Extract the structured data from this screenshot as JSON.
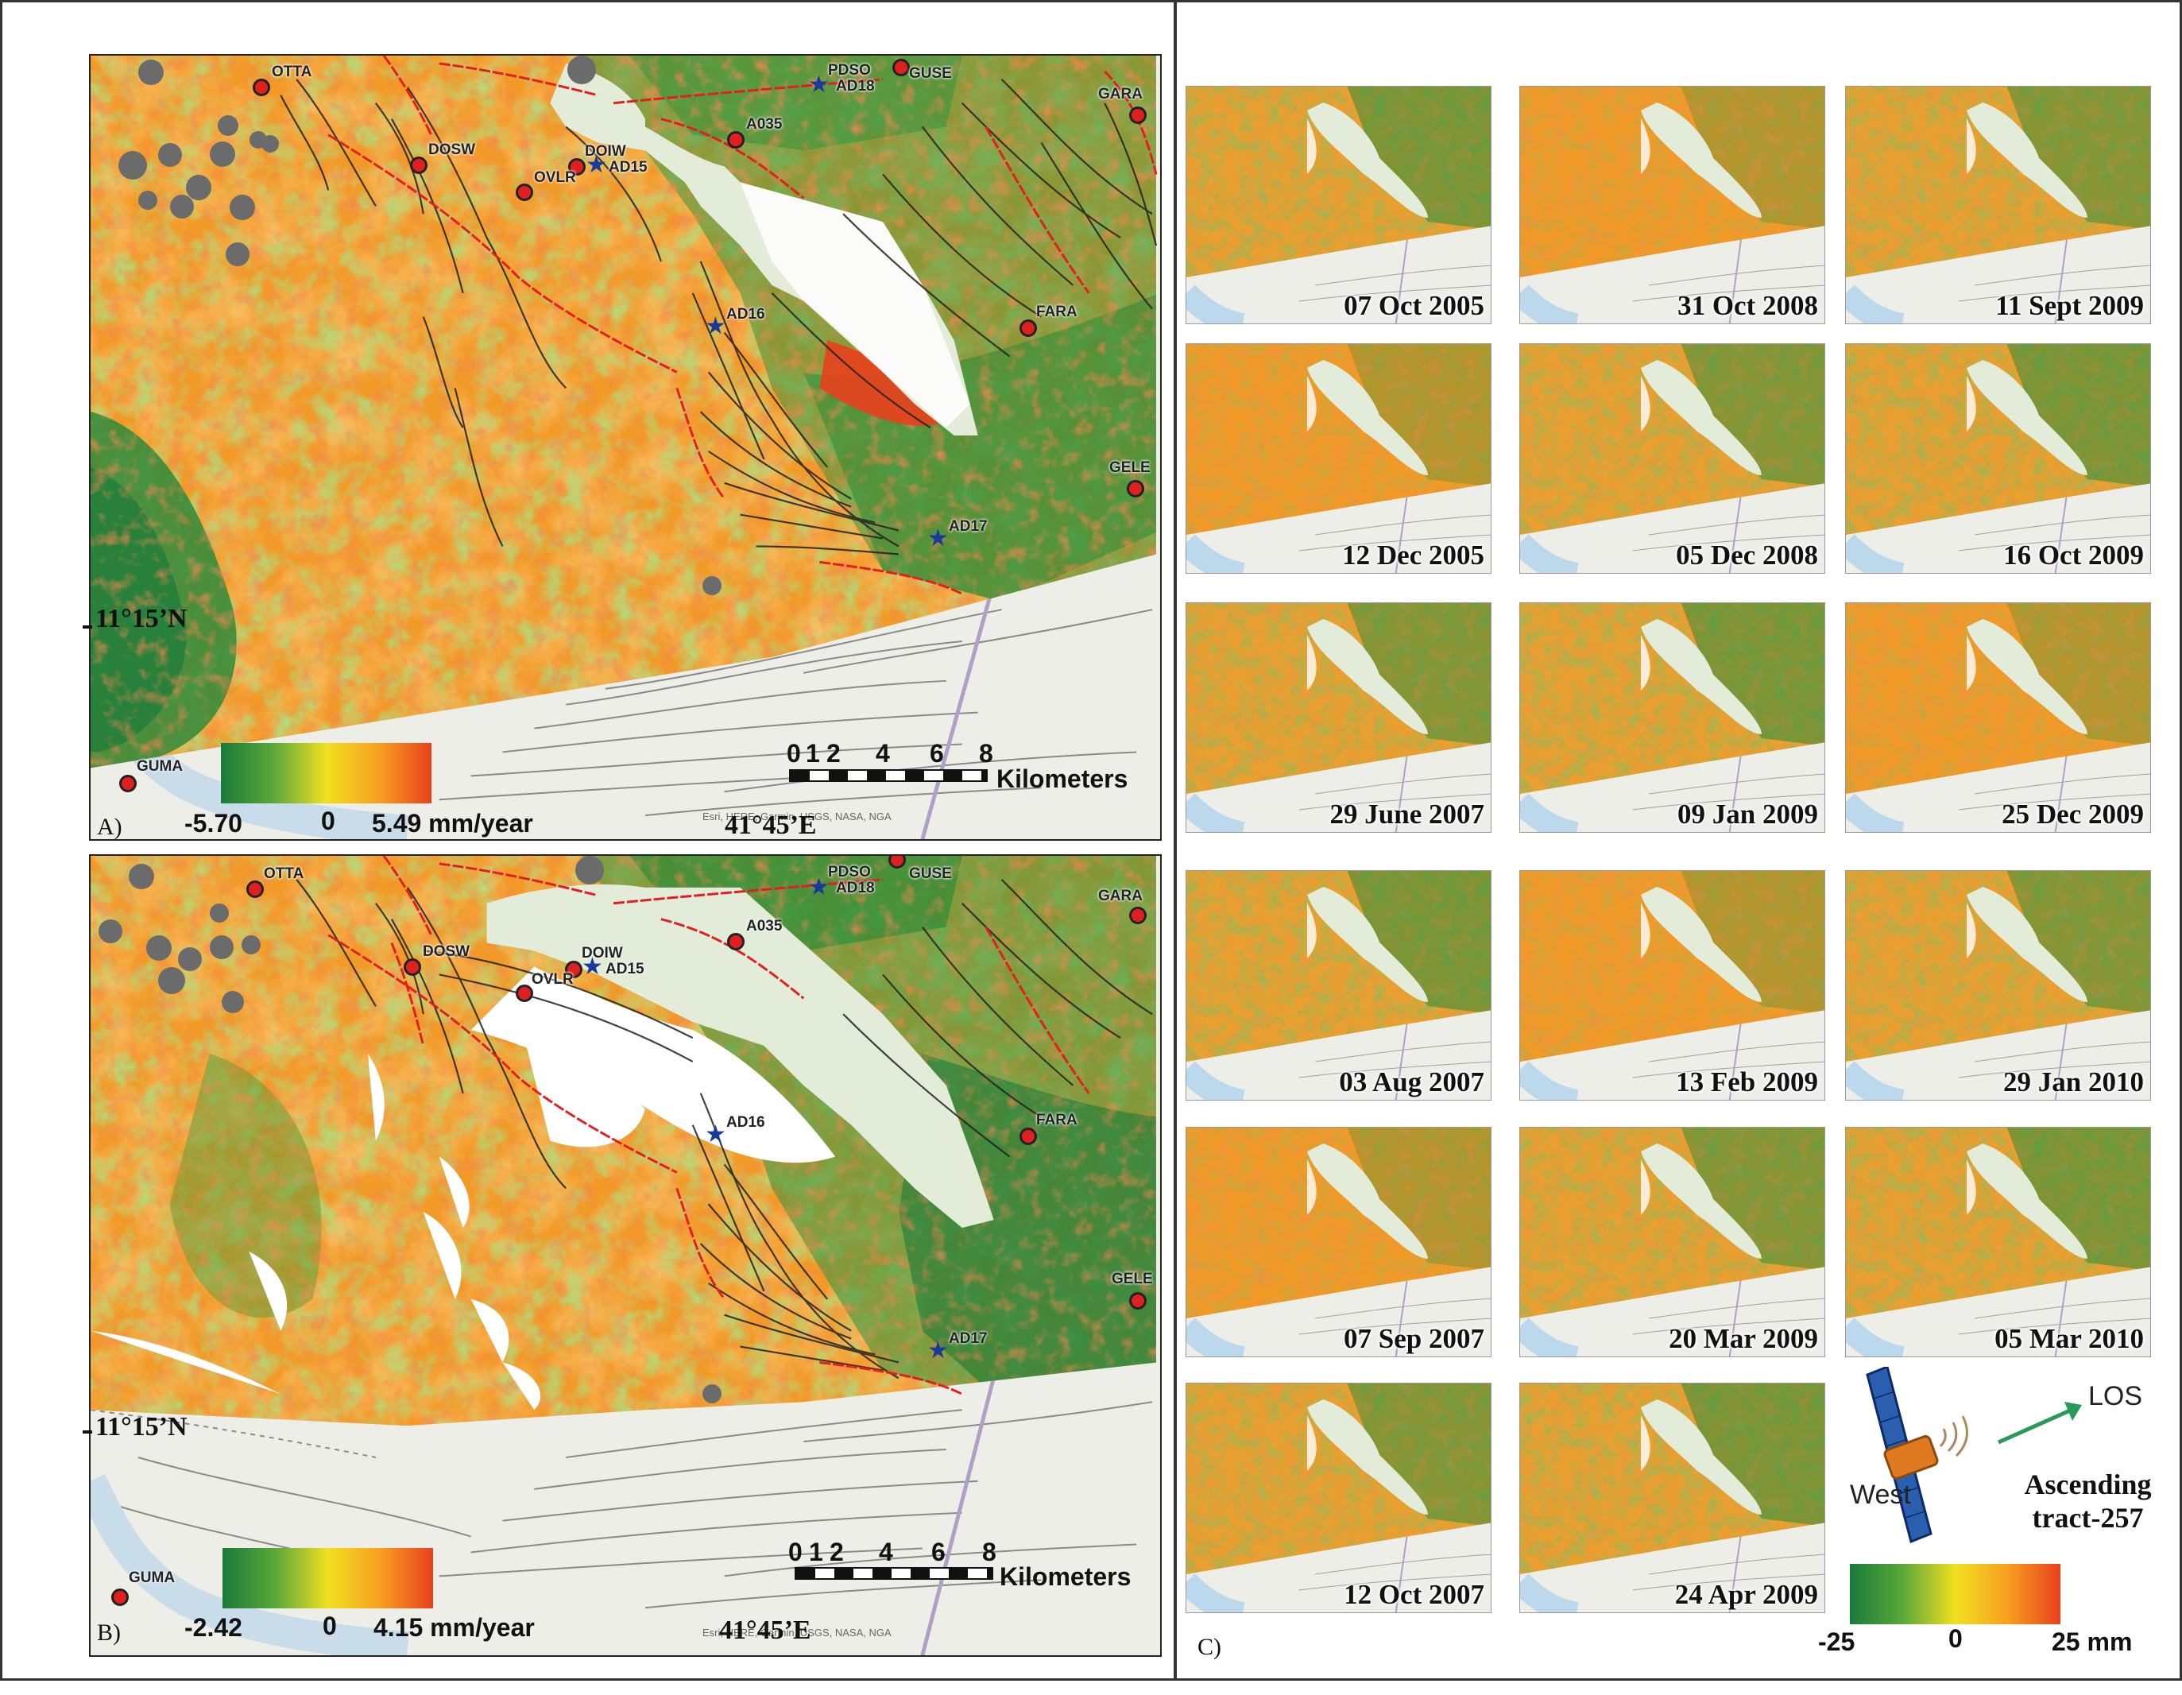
{
  "panel_a": {
    "id_label": "A)",
    "lat_label": "11°15’N",
    "lon_label": "41°45’E",
    "colorbar": {
      "min": "-5.70",
      "zero": "0",
      "max": "5.49 mm/year"
    },
    "scale": {
      "ticks": [
        "0",
        "1",
        "2",
        "4",
        "6",
        "8"
      ],
      "unit": "Kilometers"
    },
    "credit": "Esri, HERE, Garmin, USGS, NASA, NGA",
    "stations": [
      "OTTA",
      "PDSO",
      "GUSE",
      "AD18",
      "GARA",
      "DOSW",
      "DOIW",
      "AD15",
      "OVLR",
      "A035",
      "FARA",
      "AD16",
      "GELE",
      "AD17",
      "GUMA"
    ]
  },
  "panel_b": {
    "id_label": "B)",
    "lat_label": "11°15’N",
    "lon_label": "41°45’E",
    "colorbar": {
      "min": "-2.42",
      "zero": "0",
      "max": "4.15 mm/year"
    },
    "scale": {
      "ticks": [
        "0",
        "1",
        "2",
        "4",
        "6",
        "8"
      ],
      "unit": "Kilometers"
    },
    "credit": "Esri, HERE, Garmin, USGS, NASA, NGA",
    "stations": [
      "OTTA",
      "PDSO",
      "GUSE",
      "AD18",
      "GARA",
      "DOSW",
      "DOIW",
      "AD15",
      "OVLR",
      "A035",
      "FARA",
      "AD16",
      "GELE",
      "AD17",
      "GUMA"
    ]
  },
  "panel_c": {
    "id_label": "C)",
    "dates": [
      [
        "07 Oct 2005",
        "31 Oct 2008",
        "11 Sept 2009"
      ],
      [
        "12 Dec 2005",
        "05 Dec 2008",
        "16 Oct 2009"
      ],
      [
        "29 June 2007",
        "09 Jan 2009",
        "25 Dec 2009"
      ],
      [
        "03 Aug 2007",
        "13 Feb 2009",
        "29 Jan 2010"
      ],
      [
        "07 Sep 2007",
        "20 Mar 2009",
        "05 Mar 2010"
      ],
      [
        "12 Oct 2007",
        "24 Apr 2009"
      ]
    ],
    "legend": {
      "los": "LOS",
      "west": "West",
      "track_line1": "Ascending",
      "track_line2": "tract-257",
      "colorbar": {
        "min": "-25",
        "zero": "0",
        "max": "25 mm"
      }
    }
  },
  "colors": {
    "uplift": "#e8401c",
    "neutral": "#f0e020",
    "subsidence": "#1a7a3a",
    "station": "#e02020",
    "gnss_star": "#1a3a9a",
    "fault_thrust": "#e02020",
    "fault": "#222222"
  }
}
